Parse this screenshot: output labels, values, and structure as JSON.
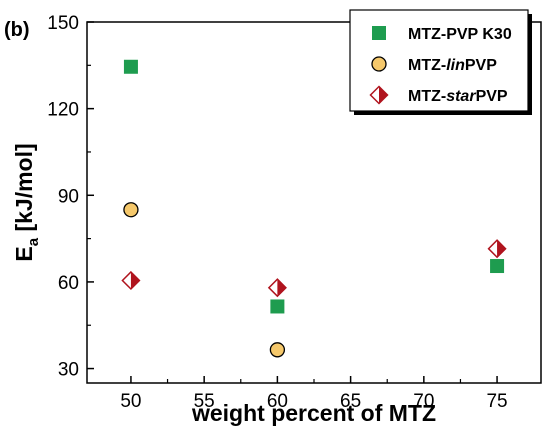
{
  "panel_label": "(b)",
  "colors": {
    "square": "#1e9c4f",
    "circle_fill": "#f5c86b",
    "diamond": "#b0141e",
    "axis": "#000000"
  },
  "chart_data": {
    "type": "scatter",
    "xlabel": "weight percent of MTZ",
    "ylabel_main": "E",
    "ylabel_sub": "a",
    "ylabel_rest": " [kJ/mol]",
    "xlim": [
      47,
      78
    ],
    "ylim": [
      25,
      150
    ],
    "xticks": [
      50,
      55,
      60,
      65,
      70,
      75
    ],
    "yticks": [
      30,
      60,
      90,
      120,
      150
    ],
    "grid": false,
    "legend_position": "top-right",
    "series": [
      {
        "name": "MTZ-PVP K30",
        "legend_parts": [
          {
            "text": "MTZ-PVP K30",
            "italic": false
          }
        ],
        "marker": "square",
        "points": [
          {
            "x": 50,
            "y": 134.5
          },
          {
            "x": 60,
            "y": 51.5
          },
          {
            "x": 75,
            "y": 65.5
          }
        ]
      },
      {
        "name": "MTZ-linPVP",
        "legend_parts": [
          {
            "text": "MTZ-",
            "italic": false
          },
          {
            "text": "lin",
            "italic": true
          },
          {
            "text": "PVP",
            "italic": false
          }
        ],
        "marker": "circle",
        "points": [
          {
            "x": 50,
            "y": 85
          },
          {
            "x": 60,
            "y": 36.5
          }
        ]
      },
      {
        "name": "MTZ-starPVP",
        "legend_parts": [
          {
            "text": "MTZ-",
            "italic": false
          },
          {
            "text": "star",
            "italic": true
          },
          {
            "text": "PVP",
            "italic": false
          }
        ],
        "marker": "diamond-half",
        "points": [
          {
            "x": 50,
            "y": 60.5
          },
          {
            "x": 60,
            "y": 58
          },
          {
            "x": 75,
            "y": 71.5
          }
        ]
      }
    ]
  }
}
